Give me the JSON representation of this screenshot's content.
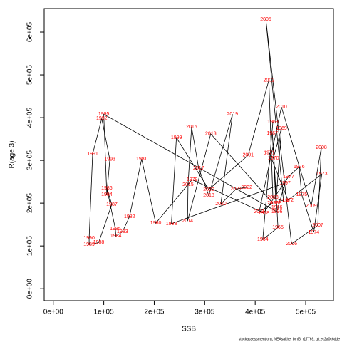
{
  "chart_data": {
    "type": "scatter",
    "connected": true,
    "x_label": "SSB",
    "y_label": "R(age 3)",
    "footnote": "stockassessment.org, NEAsaithe_bmf6, r17769, git:ec2a0c6dde",
    "line_color": "#000000",
    "label_color": "#ff0000",
    "labels": [
      "1963",
      "1964",
      "1965",
      "1966",
      "1967",
      "1968",
      "1969",
      "1970",
      "1971",
      "1972",
      "1973",
      "1974",
      "1975",
      "1976",
      "1977",
      "1978",
      "1979",
      "1980",
      "1981",
      "1982",
      "1983",
      "1984",
      "1985",
      "1986",
      "1987",
      "1988",
      "1989",
      "1990",
      "1991",
      "1992",
      "1993",
      "1994",
      "1995",
      "1996",
      "1997",
      "1998",
      "1999",
      "2000",
      "2001",
      "2002",
      "2003",
      "2004",
      "2005",
      "2006",
      "2007",
      "2008",
      "2009",
      "2010",
      "2011",
      "2012",
      "2013",
      "2014",
      "2015",
      "2016",
      "2017",
      "2018",
      "2019",
      "2020",
      "2021",
      "2022"
    ],
    "x": [
      435000,
      415000,
      445000,
      443000,
      434000,
      441000,
      452000,
      436000,
      428000,
      465000,
      532000,
      516000,
      492000,
      487000,
      466000,
      417000,
      275000,
      203000,
      175000,
      151000,
      137000,
      124000,
      123000,
      106000,
      116000,
      90000,
      71000,
      71000,
      78000,
      96000,
      112000,
      106000,
      100000,
      443000,
      459000,
      234000,
      244000,
      308000,
      386000,
      427000,
      435000,
      456000,
      421000,
      472000,
      524000,
      531000,
      511000,
      452000,
      408000,
      435000,
      312000,
      266000,
      267000,
      274000,
      288000,
      308000,
      355000,
      332000,
      362000,
      383000
    ],
    "values": [
      390000,
      115000,
      143000,
      190000,
      363000,
      200000,
      375000,
      305000,
      317000,
      207000,
      268000,
      132000,
      220000,
      285000,
      262000,
      177000,
      255000,
      153000,
      303000,
      168000,
      133000,
      123000,
      140000,
      235000,
      197000,
      108000,
      103000,
      118000,
      315000,
      398000,
      302000,
      220000,
      408000,
      180000,
      247000,
      152000,
      353000,
      232000,
      312000,
      487000,
      213000,
      205000,
      630000,
      105000,
      148000,
      330000,
      193000,
      425000,
      180000,
      200000,
      362000,
      158000,
      243000,
      378000,
      282000,
      218000,
      408000,
      198000,
      233000,
      237000
    ],
    "xlim": [
      -18000,
      555000
    ],
    "ylim": [
      -28000,
      655000
    ],
    "xticks": [
      {
        "value": 0,
        "label": "0e+00"
      },
      {
        "value": 100000,
        "label": "1e+05"
      },
      {
        "value": 200000,
        "label": "2e+05"
      },
      {
        "value": 300000,
        "label": "3e+05"
      },
      {
        "value": 400000,
        "label": "4e+05"
      },
      {
        "value": 500000,
        "label": "5e+05"
      }
    ],
    "yticks": [
      {
        "value": 0,
        "label": "0e+00"
      },
      {
        "value": 100000,
        "label": "1e+05"
      },
      {
        "value": 200000,
        "label": "2e+05"
      },
      {
        "value": 300000,
        "label": "3e+05"
      },
      {
        "value": 400000,
        "label": "4e+05"
      },
      {
        "value": 500000,
        "label": "5e+05"
      },
      {
        "value": 600000,
        "label": "6e+05"
      }
    ]
  }
}
